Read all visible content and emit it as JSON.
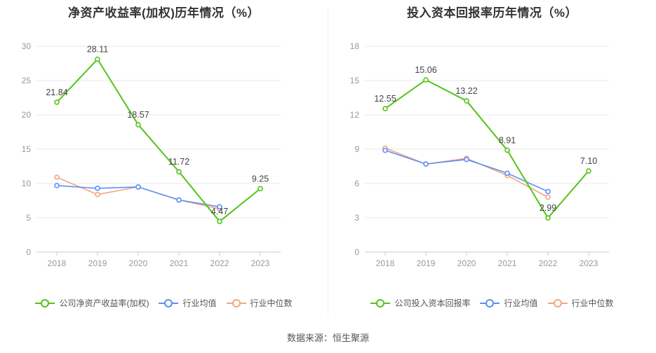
{
  "source": "数据来源：恒生聚源",
  "colors": {
    "company": "#52c41a",
    "avg": "#5b8ff9",
    "median": "#f4a582",
    "grid": "#e8e8e8",
    "axis": "#999999"
  },
  "chart_data": [
    {
      "type": "line",
      "title": "净资产收益率(加权)历年情况（%）",
      "categories": [
        "2018",
        "2019",
        "2020",
        "2021",
        "2022",
        "2023"
      ],
      "ylim": [
        0,
        30
      ],
      "yticks": [
        "0",
        "5",
        "10",
        "15",
        "20",
        "25",
        "30"
      ],
      "series": [
        {
          "name": "公司净资产收益率(加权)",
          "values": [
            21.84,
            28.11,
            18.57,
            11.72,
            4.47,
            9.25
          ],
          "labels": [
            "21.84",
            "28.11",
            "18.57",
            "11.72",
            "4.47",
            "9.25"
          ]
        },
        {
          "name": "行业均值",
          "values": [
            9.7,
            9.3,
            9.5,
            7.6,
            6.6,
            null
          ]
        },
        {
          "name": "行业中位数",
          "values": [
            10.9,
            8.4,
            9.5,
            7.6,
            6.3,
            null
          ]
        }
      ]
    },
    {
      "type": "line",
      "title": "投入资本回报率历年情况（%）",
      "categories": [
        "2018",
        "2019",
        "2020",
        "2021",
        "2022",
        "2023"
      ],
      "ylim": [
        0,
        18
      ],
      "yticks": [
        "0",
        "3",
        "6",
        "9",
        "12",
        "15",
        "18"
      ],
      "series": [
        {
          "name": "公司投入资本回报率",
          "values": [
            12.55,
            15.06,
            13.22,
            8.91,
            2.99,
            7.1
          ],
          "labels": [
            "12.55",
            "15.06",
            "13.22",
            "8.91",
            "2.99",
            "7.10"
          ]
        },
        {
          "name": "行业均值",
          "values": [
            8.9,
            7.7,
            8.1,
            6.9,
            5.3,
            null
          ]
        },
        {
          "name": "行业中位数",
          "values": [
            9.1,
            7.7,
            8.2,
            6.7,
            4.8,
            null
          ]
        }
      ]
    }
  ]
}
